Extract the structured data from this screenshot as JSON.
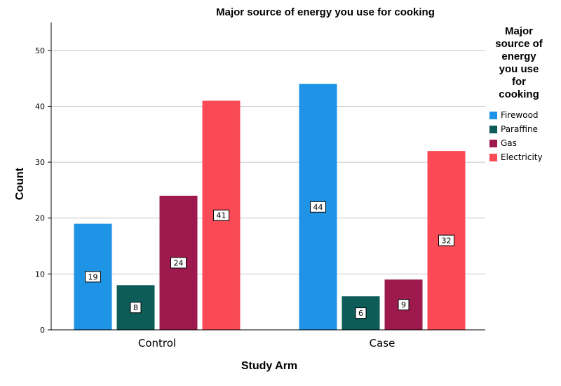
{
  "chart_data": {
    "type": "bar",
    "title": "Major source of energy you use for cooking",
    "xlabel": "Study Arm",
    "ylabel": "Count",
    "categories": [
      "Control",
      "Case"
    ],
    "ylim": [
      0,
      55
    ],
    "yticks": [
      0,
      10,
      20,
      30,
      40,
      50
    ],
    "grid": true,
    "legend": {
      "title": "Major source of energy you use for cooking",
      "placement": "right"
    },
    "series": [
      {
        "name": "Firewood",
        "color": "#1f93e6",
        "values": [
          19,
          44
        ]
      },
      {
        "name": "Paraffine",
        "color": "#0d5c58",
        "values": [
          8,
          6
        ]
      },
      {
        "name": "Gas",
        "color": "#9e1a4e",
        "values": [
          24,
          9
        ]
      },
      {
        "name": "Electricity",
        "color": "#fa4a55",
        "values": [
          41,
          32
        ]
      }
    ]
  }
}
